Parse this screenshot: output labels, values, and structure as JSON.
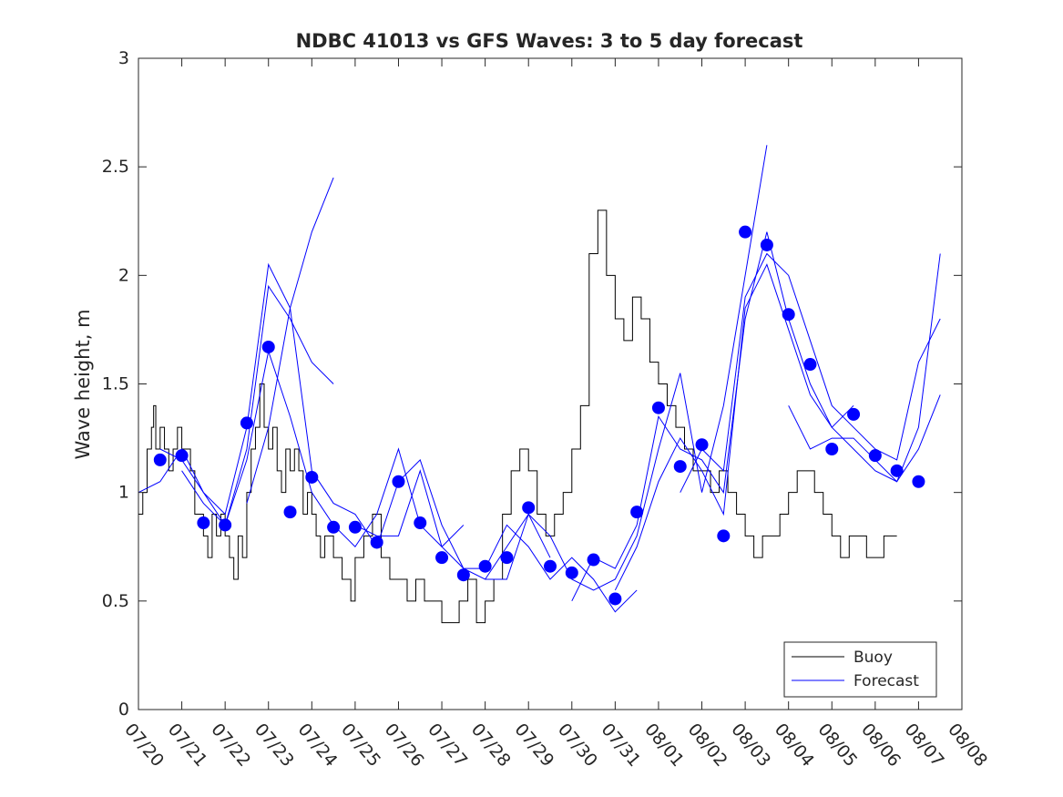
{
  "chart_data": {
    "type": "line",
    "title": "NDBC 41013 vs GFS Waves: 3 to 5 day forecast",
    "xlabel": "",
    "ylabel": "Wave height, m",
    "xlim": [
      "07/20",
      "08/08"
    ],
    "ylim": [
      0,
      3
    ],
    "x_tick_labels": [
      "07/20",
      "07/21",
      "07/22",
      "07/23",
      "07/24",
      "07/25",
      "07/26",
      "07/27",
      "07/28",
      "07/29",
      "07/30",
      "07/31",
      "08/01",
      "08/02",
      "08/03",
      "08/04",
      "08/05",
      "08/06",
      "08/07",
      "08/08"
    ],
    "y_tick_labels": [
      "0",
      "0.5",
      "1",
      "1.5",
      "2",
      "2.5",
      "3"
    ],
    "y_tick_values": [
      0,
      0.5,
      1,
      1.5,
      2,
      2.5,
      3
    ],
    "grid": false,
    "legend_position": "bottom-right",
    "series": [
      {
        "name": "Buoy",
        "color": "#000000",
        "style": "step",
        "x_days": [
          0.0,
          0.1,
          0.2,
          0.3,
          0.35,
          0.4,
          0.5,
          0.6,
          0.7,
          0.8,
          0.9,
          1.0,
          1.1,
          1.2,
          1.3,
          1.4,
          1.5,
          1.6,
          1.7,
          1.8,
          1.9,
          2.0,
          2.1,
          2.2,
          2.3,
          2.4,
          2.5,
          2.6,
          2.7,
          2.8,
          2.9,
          3.0,
          3.1,
          3.2,
          3.3,
          3.4,
          3.5,
          3.6,
          3.7,
          3.8,
          3.9,
          4.0,
          4.1,
          4.2,
          4.3,
          4.4,
          4.5,
          4.6,
          4.7,
          4.8,
          4.9,
          5.0,
          5.2,
          5.4,
          5.6,
          5.8,
          6.0,
          6.2,
          6.4,
          6.6,
          6.8,
          7.0,
          7.2,
          7.4,
          7.6,
          7.8,
          8.0,
          8.2,
          8.4,
          8.6,
          8.8,
          9.0,
          9.2,
          9.4,
          9.6,
          9.8,
          10.0,
          10.2,
          10.4,
          10.6,
          10.8,
          11.0,
          11.2,
          11.4,
          11.6,
          11.8,
          12.0,
          12.2,
          12.4,
          12.6,
          12.8,
          13.0,
          13.2,
          13.4,
          13.6,
          13.8,
          14.0,
          14.2,
          14.4,
          14.6,
          14.8,
          15.0,
          15.2,
          15.4,
          15.6,
          15.8,
          16.0,
          16.2,
          16.4,
          16.6,
          16.8,
          17.0,
          17.2,
          17.4
        ],
        "values": [
          0.9,
          1.0,
          1.2,
          1.3,
          1.4,
          1.2,
          1.3,
          1.2,
          1.1,
          1.2,
          1.3,
          1.2,
          1.2,
          1.1,
          0.9,
          0.9,
          0.8,
          0.7,
          0.9,
          0.8,
          0.9,
          0.8,
          0.7,
          0.6,
          0.8,
          0.7,
          1.0,
          1.2,
          1.3,
          1.5,
          1.3,
          1.2,
          1.3,
          1.1,
          1.0,
          1.2,
          1.1,
          1.2,
          1.1,
          0.9,
          1.0,
          0.9,
          0.8,
          0.7,
          0.8,
          0.8,
          0.7,
          0.7,
          0.6,
          0.6,
          0.5,
          0.7,
          0.8,
          0.9,
          0.7,
          0.6,
          0.6,
          0.5,
          0.6,
          0.5,
          0.5,
          0.4,
          0.4,
          0.5,
          0.6,
          0.4,
          0.5,
          0.6,
          0.9,
          1.1,
          1.2,
          1.1,
          0.9,
          0.8,
          0.9,
          1.0,
          1.2,
          1.4,
          2.1,
          2.3,
          2.0,
          1.8,
          1.7,
          1.9,
          1.8,
          1.6,
          1.5,
          1.4,
          1.3,
          1.2,
          1.1,
          1.1,
          1.0,
          1.1,
          1.0,
          0.9,
          0.8,
          0.7,
          0.8,
          0.8,
          0.9,
          1.0,
          1.1,
          1.1,
          1.0,
          0.9,
          0.8,
          0.7,
          0.8,
          0.8,
          0.7,
          0.7,
          0.8,
          0.8
        ]
      },
      {
        "name": "Forecast",
        "color": "#0000ff",
        "style": "line",
        "runs": [
          {
            "x_days": [
              0.0,
              0.5,
              1.0,
              1.5,
              2.0,
              2.5,
              3.0,
              3.5,
              4.0,
              4.5
            ],
            "values": [
              1.0,
              1.05,
              1.2,
              1.0,
              0.9,
              1.3,
              2.05,
              1.85,
              2.2,
              2.45
            ]
          },
          {
            "x_days": [
              0.5,
              1.0,
              1.5,
              2.0,
              2.5,
              3.0,
              3.5,
              4.0,
              4.5
            ],
            "values": [
              1.2,
              1.15,
              1.0,
              0.85,
              1.2,
              1.95,
              1.8,
              1.6,
              1.5
            ]
          },
          {
            "x_days": [
              1.0,
              1.5,
              2.0,
              2.5,
              3.0,
              3.5,
              4.0,
              4.5,
              5.0,
              5.5,
              6.0,
              6.5,
              7.0,
              7.5
            ],
            "values": [
              1.1,
              0.95,
              0.85,
              1.15,
              1.65,
              1.35,
              1.0,
              0.85,
              0.75,
              0.9,
              1.2,
              0.85,
              0.75,
              0.85
            ]
          },
          {
            "x_days": [
              2.5,
              3.0,
              3.5,
              4.0,
              4.5,
              5.0,
              5.5,
              6.0,
              6.5,
              7.0,
              7.5,
              8.0,
              8.5,
              9.0,
              9.5
            ],
            "values": [
              0.95,
              1.3,
              1.85,
              1.1,
              0.95,
              0.9,
              0.75,
              1.05,
              1.15,
              0.85,
              0.65,
              0.6,
              0.6,
              0.9,
              0.7
            ]
          },
          {
            "x_days": [
              5.0,
              5.5,
              6.0,
              6.5,
              7.0,
              7.5,
              8.0,
              8.5,
              9.0,
              9.5,
              10.0,
              10.5,
              11.0,
              11.5
            ],
            "values": [
              0.85,
              0.8,
              0.8,
              1.1,
              0.75,
              0.65,
              0.65,
              0.85,
              0.75,
              0.6,
              0.7,
              0.6,
              0.45,
              0.55
            ]
          },
          {
            "x_days": [
              8.0,
              8.5,
              9.0,
              9.5,
              10.0,
              10.5,
              11.0,
              11.5,
              12.0,
              12.5,
              13.0,
              13.5,
              14.0,
              14.5
            ],
            "values": [
              0.6,
              0.75,
              0.9,
              0.8,
              0.6,
              0.55,
              0.6,
              0.8,
              1.2,
              1.55,
              1.0,
              1.4,
              2.0,
              2.6
            ]
          },
          {
            "x_days": [
              10.0,
              10.5,
              11.0,
              11.5,
              12.0,
              12.5,
              13.0,
              13.5,
              14.0,
              14.5,
              15.0,
              15.5,
              16.0,
              16.5
            ],
            "values": [
              0.5,
              0.7,
              0.65,
              0.85,
              1.35,
              1.2,
              1.15,
              1.0,
              1.8,
              2.2,
              1.8,
              1.5,
              1.3,
              1.4
            ]
          },
          {
            "x_days": [
              11.0,
              11.5,
              12.0,
              12.5,
              13.0,
              13.5,
              14.0,
              14.5,
              15.0,
              15.5,
              16.0,
              16.5,
              17.0,
              17.5,
              18.0,
              18.5
            ],
            "values": [
              0.55,
              0.75,
              1.05,
              1.25,
              1.1,
              0.9,
              1.85,
              2.05,
              1.75,
              1.45,
              1.3,
              1.2,
              1.1,
              1.05,
              1.3,
              2.1
            ]
          },
          {
            "x_days": [
              12.5,
              13.0,
              13.5,
              14.0,
              14.5,
              15.0,
              15.5,
              16.0,
              16.5,
              17.0,
              17.5,
              18.0,
              18.5
            ],
            "values": [
              1.0,
              1.2,
              1.1,
              1.9,
              2.1,
              2.0,
              1.7,
              1.4,
              1.3,
              1.2,
              1.15,
              1.6,
              1.8
            ]
          },
          {
            "x_days": [
              15.0,
              15.5,
              16.0,
              16.5,
              17.0,
              17.5,
              18.0,
              18.5
            ],
            "values": [
              1.4,
              1.2,
              1.25,
              1.25,
              1.15,
              1.05,
              1.2,
              1.45
            ]
          }
        ]
      },
      {
        "name": "",
        "color": "#0000ff",
        "style": "markers",
        "x_days": [
          0.5,
          1.0,
          1.5,
          2.0,
          2.5,
          3.0,
          3.5,
          4.0,
          4.5,
          5.0,
          5.5,
          6.0,
          6.5,
          7.0,
          7.5,
          8.0,
          8.5,
          9.0,
          9.5,
          10.0,
          10.5,
          11.0,
          11.5,
          12.0,
          12.5,
          13.0,
          13.5,
          14.0,
          14.5,
          15.0,
          15.5,
          16.0,
          16.5,
          17.0,
          17.5,
          18.0
        ],
        "values": [
          1.15,
          1.17,
          0.86,
          0.85,
          1.32,
          1.67,
          0.91,
          1.07,
          0.84,
          0.84,
          0.77,
          1.05,
          0.86,
          0.7,
          0.62,
          0.66,
          0.7,
          0.93,
          0.66,
          0.63,
          0.69,
          0.51,
          0.91,
          1.39,
          1.12,
          1.22,
          0.8,
          2.2,
          2.14,
          1.82,
          1.59,
          1.2,
          1.36,
          1.17,
          1.1,
          1.05
        ]
      }
    ],
    "legend": [
      "Buoy",
      "Forecast"
    ]
  }
}
